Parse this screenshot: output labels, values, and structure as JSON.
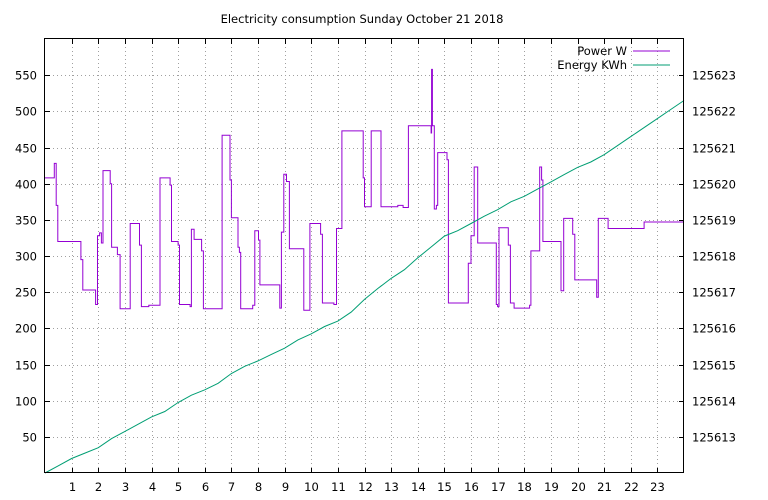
{
  "chart_data": {
    "type": "line",
    "title": "Electricity consumption Sunday October 21 2018",
    "xlabel": "",
    "ylabel": "",
    "xlim": [
      0,
      24
    ],
    "xticks": [
      1,
      2,
      3,
      4,
      5,
      6,
      7,
      8,
      9,
      10,
      11,
      12,
      13,
      14,
      15,
      16,
      17,
      18,
      19,
      20,
      21,
      22,
      23
    ],
    "ylim": [
      0,
      600
    ],
    "yticks": [
      50,
      100,
      150,
      200,
      250,
      300,
      350,
      400,
      450,
      500,
      550
    ],
    "y2lim": [
      125612.0,
      125624.0
    ],
    "y2ticks": [
      125613,
      125614,
      125615,
      125616,
      125617,
      125618,
      125619,
      125620,
      125621,
      125622,
      125623
    ],
    "grid": true,
    "legend_position": "top-right",
    "colors": {
      "power": "#9400d3",
      "energy": "#009e73"
    },
    "series": [
      {
        "name": "Power W",
        "axis": "left",
        "step": true,
        "points": [
          [
            0,
            408
          ],
          [
            0.35,
            408
          ],
          [
            0.35,
            428
          ],
          [
            0.42,
            428
          ],
          [
            0.42,
            370
          ],
          [
            0.48,
            370
          ],
          [
            0.48,
            320
          ],
          [
            1.35,
            320
          ],
          [
            1.35,
            295
          ],
          [
            1.42,
            295
          ],
          [
            1.42,
            253
          ],
          [
            1.9,
            253
          ],
          [
            1.9,
            233
          ],
          [
            1.97,
            233
          ],
          [
            1.97,
            328
          ],
          [
            2.05,
            328
          ],
          [
            2.05,
            332
          ],
          [
            2.12,
            332
          ],
          [
            2.12,
            318
          ],
          [
            2.18,
            318
          ],
          [
            2.18,
            418
          ],
          [
            2.45,
            418
          ],
          [
            2.45,
            400
          ],
          [
            2.5,
            400
          ],
          [
            2.5,
            312
          ],
          [
            2.72,
            312
          ],
          [
            2.72,
            302
          ],
          [
            2.82,
            302
          ],
          [
            2.82,
            227
          ],
          [
            3.2,
            227
          ],
          [
            3.2,
            345
          ],
          [
            3.55,
            345
          ],
          [
            3.55,
            315
          ],
          [
            3.62,
            315
          ],
          [
            3.62,
            230
          ],
          [
            3.9,
            230
          ],
          [
            3.9,
            232
          ],
          [
            4.32,
            232
          ],
          [
            4.32,
            408
          ],
          [
            4.7,
            408
          ],
          [
            4.7,
            398
          ],
          [
            4.75,
            398
          ],
          [
            4.75,
            320
          ],
          [
            5.0,
            320
          ],
          [
            5.0,
            315
          ],
          [
            5.05,
            315
          ],
          [
            5.05,
            233
          ],
          [
            5.45,
            233
          ],
          [
            5.45,
            230
          ],
          [
            5.5,
            230
          ],
          [
            5.5,
            337
          ],
          [
            5.6,
            337
          ],
          [
            5.6,
            323
          ],
          [
            5.88,
            323
          ],
          [
            5.88,
            307
          ],
          [
            5.95,
            307
          ],
          [
            5.95,
            227
          ],
          [
            6.65,
            227
          ],
          [
            6.65,
            467
          ],
          [
            6.95,
            467
          ],
          [
            6.95,
            405
          ],
          [
            7.0,
            405
          ],
          [
            7.0,
            353
          ],
          [
            7.25,
            353
          ],
          [
            7.25,
            312
          ],
          [
            7.3,
            312
          ],
          [
            7.3,
            305
          ],
          [
            7.35,
            305
          ],
          [
            7.35,
            227
          ],
          [
            7.8,
            227
          ],
          [
            7.8,
            232
          ],
          [
            7.88,
            232
          ],
          [
            7.88,
            335
          ],
          [
            8.02,
            335
          ],
          [
            8.02,
            322
          ],
          [
            8.07,
            322
          ],
          [
            8.07,
            260
          ],
          [
            8.82,
            260
          ],
          [
            8.82,
            228
          ],
          [
            8.88,
            228
          ],
          [
            8.88,
            333
          ],
          [
            8.97,
            333
          ],
          [
            8.97,
            413
          ],
          [
            9.07,
            413
          ],
          [
            9.07,
            403
          ],
          [
            9.18,
            403
          ],
          [
            9.18,
            310
          ],
          [
            9.72,
            310
          ],
          [
            9.72,
            225
          ],
          [
            9.95,
            225
          ],
          [
            9.95,
            345
          ],
          [
            10.35,
            345
          ],
          [
            10.35,
            330
          ],
          [
            10.42,
            330
          ],
          [
            10.42,
            235
          ],
          [
            10.85,
            235
          ],
          [
            10.85,
            233
          ],
          [
            10.95,
            233
          ],
          [
            10.95,
            338
          ],
          [
            11.15,
            338
          ],
          [
            11.15,
            473
          ],
          [
            11.95,
            473
          ],
          [
            11.95,
            408
          ],
          [
            12.0,
            408
          ],
          [
            12.0,
            368
          ],
          [
            12.25,
            368
          ],
          [
            12.25,
            473
          ],
          [
            12.62,
            473
          ],
          [
            12.62,
            368
          ],
          [
            13.25,
            368
          ],
          [
            13.25,
            370
          ],
          [
            13.45,
            370
          ],
          [
            13.45,
            367
          ],
          [
            13.65,
            367
          ],
          [
            13.65,
            480
          ],
          [
            14.5,
            480
          ],
          [
            14.5,
            470
          ],
          [
            14.52,
            470
          ],
          [
            14.52,
            558
          ],
          [
            14.55,
            558
          ],
          [
            14.55,
            480
          ],
          [
            14.62,
            480
          ],
          [
            14.62,
            365
          ],
          [
            14.7,
            365
          ],
          [
            14.7,
            370
          ],
          [
            14.75,
            370
          ],
          [
            14.75,
            443
          ],
          [
            15.1,
            443
          ],
          [
            15.1,
            433
          ],
          [
            15.15,
            433
          ],
          [
            15.15,
            235
          ],
          [
            15.9,
            235
          ],
          [
            15.9,
            290
          ],
          [
            16.0,
            290
          ],
          [
            16.0,
            328
          ],
          [
            16.12,
            328
          ],
          [
            16.12,
            423
          ],
          [
            16.25,
            423
          ],
          [
            16.25,
            318
          ],
          [
            16.95,
            318
          ],
          [
            16.95,
            233
          ],
          [
            17.0,
            233
          ],
          [
            17.0,
            230
          ],
          [
            17.05,
            230
          ],
          [
            17.05,
            339
          ],
          [
            17.4,
            339
          ],
          [
            17.4,
            315
          ],
          [
            17.48,
            315
          ],
          [
            17.48,
            235
          ],
          [
            17.62,
            235
          ],
          [
            17.62,
            228
          ],
          [
            18.2,
            228
          ],
          [
            18.2,
            232
          ],
          [
            18.25,
            232
          ],
          [
            18.25,
            307
          ],
          [
            18.58,
            307
          ],
          [
            18.58,
            423
          ],
          [
            18.65,
            423
          ],
          [
            18.65,
            405
          ],
          [
            18.7,
            405
          ],
          [
            18.7,
            320
          ],
          [
            19.38,
            320
          ],
          [
            19.38,
            252
          ],
          [
            19.48,
            252
          ],
          [
            19.48,
            352
          ],
          [
            19.82,
            352
          ],
          [
            19.82,
            330
          ],
          [
            19.9,
            330
          ],
          [
            19.9,
            267
          ],
          [
            20.72,
            267
          ],
          [
            20.72,
            243
          ],
          [
            20.78,
            243
          ],
          [
            20.78,
            352
          ],
          [
            21.15,
            352
          ],
          [
            21.15,
            338
          ],
          [
            22.5,
            338
          ],
          [
            22.5,
            347
          ],
          [
            24,
            347
          ]
        ]
      },
      {
        "name": "Energy KWh",
        "axis": "right",
        "step": false,
        "points": [
          [
            0,
            125612.0
          ],
          [
            0.5,
            125612.2
          ],
          [
            1.0,
            125612.4
          ],
          [
            1.5,
            125612.55
          ],
          [
            2.0,
            125612.7
          ],
          [
            2.5,
            125612.95
          ],
          [
            3.0,
            125613.15
          ],
          [
            3.5,
            125613.35
          ],
          [
            4.0,
            125613.55
          ],
          [
            4.5,
            125613.7
          ],
          [
            5.0,
            125613.95
          ],
          [
            5.5,
            125614.15
          ],
          [
            6.0,
            125614.3
          ],
          [
            6.5,
            125614.48
          ],
          [
            7.0,
            125614.75
          ],
          [
            7.5,
            125614.95
          ],
          [
            8.0,
            125615.1
          ],
          [
            8.5,
            125615.28
          ],
          [
            9.0,
            125615.45
          ],
          [
            9.5,
            125615.68
          ],
          [
            10.0,
            125615.85
          ],
          [
            10.5,
            125616.05
          ],
          [
            11.0,
            125616.2
          ],
          [
            11.5,
            125616.45
          ],
          [
            12.0,
            125616.8
          ],
          [
            12.5,
            125617.1
          ],
          [
            13.0,
            125617.38
          ],
          [
            13.5,
            125617.62
          ],
          [
            14.0,
            125617.95
          ],
          [
            14.5,
            125618.25
          ],
          [
            15.0,
            125618.55
          ],
          [
            15.5,
            125618.7
          ],
          [
            16.0,
            125618.9
          ],
          [
            16.5,
            125619.1
          ],
          [
            17.0,
            125619.28
          ],
          [
            17.5,
            125619.5
          ],
          [
            18.0,
            125619.65
          ],
          [
            18.5,
            125619.85
          ],
          [
            19.0,
            125620.05
          ],
          [
            19.5,
            125620.25
          ],
          [
            20.0,
            125620.45
          ],
          [
            20.5,
            125620.6
          ],
          [
            21.0,
            125620.8
          ],
          [
            21.5,
            125621.05
          ],
          [
            22.0,
            125621.3
          ],
          [
            22.5,
            125621.55
          ],
          [
            23.0,
            125621.8
          ],
          [
            23.5,
            125622.05
          ],
          [
            24.0,
            125622.3
          ]
        ]
      }
    ]
  }
}
